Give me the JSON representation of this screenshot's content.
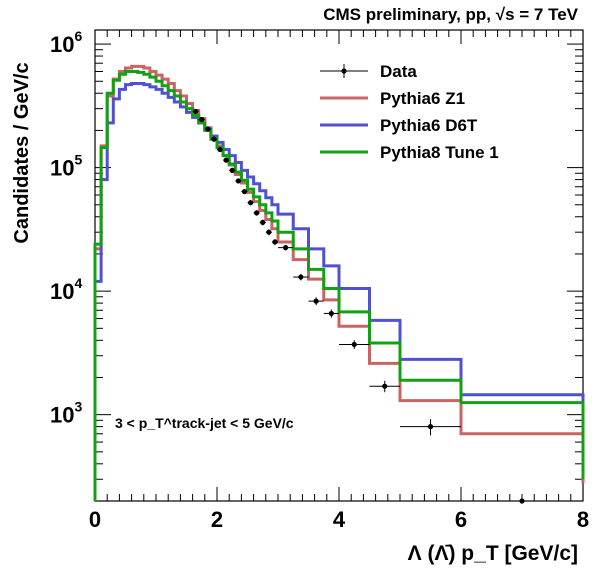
{
  "chart_data": {
    "type": "line",
    "title": "CMS preliminary, pp, √s = 7 TeV",
    "xlabel": "Λ (Λ̄) p_T [GeV/c]",
    "ylabel": "Candidates / GeV/c",
    "annotation": "3 < p_T^track-jet < 5 GeV/c",
    "xlim": [
      0,
      8
    ],
    "ylim": [
      200,
      1300000
    ],
    "yscale": "log",
    "x_ticks": [
      "0",
      "2",
      "4",
      "6",
      "8"
    ],
    "y_ticks": [
      {
        "value": 1000,
        "label": "10^3"
      },
      {
        "value": 10000,
        "label": "10^4"
      },
      {
        "value": 100000,
        "label": "10^5"
      },
      {
        "value": 1000000,
        "label": "10^6"
      }
    ],
    "legend": {
      "position": "top-right",
      "entries": [
        {
          "name": "Data",
          "type": "marker",
          "color": "#000000"
        },
        {
          "name": "Pythia6 Z1",
          "type": "line",
          "color": "#c86464"
        },
        {
          "name": "Pythia6 D6T",
          "type": "line",
          "color": "#5050d2"
        },
        {
          "name": "Pythia8 Tune 1",
          "type": "line",
          "color": "#14a014"
        }
      ]
    },
    "bin_edges": [
      0,
      0.1,
      0.2,
      0.3,
      0.4,
      0.5,
      0.6,
      0.7,
      0.8,
      0.9,
      1.0,
      1.1,
      1.2,
      1.3,
      1.4,
      1.5,
      1.6,
      1.7,
      1.8,
      1.9,
      2.0,
      2.1,
      2.2,
      2.3,
      2.4,
      2.5,
      2.6,
      2.7,
      2.8,
      2.9,
      3.0,
      3.25,
      3.5,
      3.75,
      4.0,
      4.5,
      5.0,
      6.0,
      8.0
    ],
    "series": [
      {
        "name": "Pythia6 Z1",
        "color": "#c86464",
        "values": [
          22000,
          150000,
          380000,
          520000,
          600000,
          640000,
          660000,
          660000,
          640000,
          600000,
          560000,
          520000,
          480000,
          420000,
          380000,
          330000,
          290000,
          250000,
          210000,
          180000,
          150000,
          125000,
          105000,
          88000,
          75000,
          63000,
          53000,
          45000,
          38000,
          32000,
          25000,
          18000,
          12500,
          8500,
          5200,
          2600,
          1300,
          700,
          280
        ]
      },
      {
        "name": "Pythia6 D6T",
        "color": "#5050d2",
        "values": [
          12000,
          80000,
          230000,
          360000,
          430000,
          470000,
          480000,
          480000,
          470000,
          450000,
          430000,
          400000,
          370000,
          340000,
          310000,
          280000,
          255000,
          230000,
          205000,
          180000,
          160000,
          140000,
          125000,
          110000,
          95000,
          84000,
          74000,
          65000,
          57000,
          50000,
          42000,
          32000,
          22000,
          16000,
          10500,
          5800,
          2800,
          1450,
          330
        ]
      },
      {
        "name": "Pythia8 Tune 1",
        "color": "#14a014",
        "values": [
          24000,
          145000,
          400000,
          510000,
          570000,
          600000,
          600000,
          590000,
          570000,
          540000,
          500000,
          460000,
          420000,
          380000,
          340000,
          300000,
          265000,
          230000,
          200000,
          170000,
          145000,
          125000,
          107000,
          92000,
          79000,
          67000,
          58000,
          50000,
          43000,
          37000,
          30000,
          22000,
          15000,
          10500,
          6800,
          3800,
          1900,
          1250,
          300
        ]
      },
      {
        "name": "Data",
        "color": "#000000",
        "type": "scatter",
        "x": [
          1.65,
          1.75,
          1.85,
          1.95,
          2.05,
          2.15,
          2.25,
          2.35,
          2.45,
          2.55,
          2.65,
          2.75,
          2.85,
          2.95,
          3.125,
          3.375,
          3.625,
          3.875,
          4.25,
          4.75,
          5.5,
          7.0
        ],
        "y": [
          285000,
          245000,
          205000,
          170000,
          140000,
          115000,
          95000,
          78000,
          64000,
          52000,
          43000,
          36000,
          30000,
          25000,
          22500,
          13000,
          8300,
          6600,
          3700,
          1700,
          800,
          165
        ],
        "yerr": [
          12000,
          10000,
          9000,
          8000,
          6000,
          5000,
          4500,
          3500,
          3000,
          2600,
          2200,
          1900,
          1600,
          1400,
          1100,
          800,
          600,
          500,
          300,
          180,
          120,
          40
        ]
      }
    ]
  }
}
